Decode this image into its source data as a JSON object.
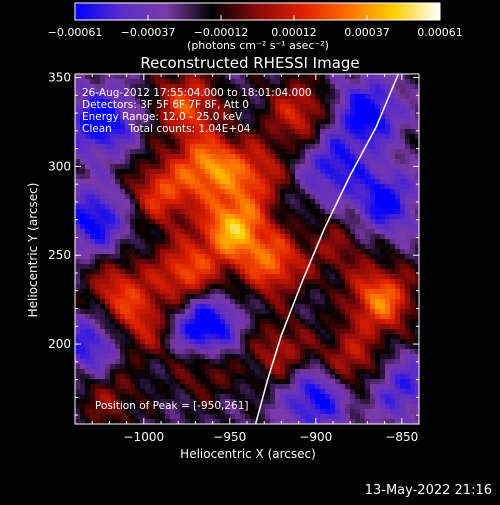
{
  "chart_data": {
    "type": "heatmap",
    "title": "Reconstructed RHESSI Image",
    "xlabel": "Heliocentric X (arcsec)",
    "ylabel": "Heliocentric Y (arcsec)",
    "xlim": [
      -1040,
      -840
    ],
    "ylim": [
      155,
      352
    ],
    "x_ticks": [
      -1000,
      -950,
      -900,
      -850
    ],
    "y_ticks": [
      200,
      250,
      300,
      350
    ],
    "x_tick_labels": [
      "−1000",
      "−950",
      "−900",
      "−850"
    ],
    "y_tick_labels": [
      "200",
      "250",
      "300",
      "350"
    ],
    "colorbar": {
      "range": [
        -0.00061,
        0.00061
      ],
      "tick_labels": [
        "−0.00061",
        "−0.00037",
        "−0.00012",
        "0.00012",
        "0.00037",
        "0.00061"
      ],
      "units_label": "(photons cm⁻² s⁻¹ asec⁻²)",
      "colors": [
        "#0000ff",
        "#5a2cc8",
        "#7a3aa8",
        "#000000",
        "#8a0a0a",
        "#e02000",
        "#ff7000",
        "#ffd000",
        "#ffffff"
      ]
    },
    "annotations": [
      "26-Aug-2012 17:55:04.000 to 18:01:04.000",
      "Detectors: 3F 5F 6F 7F 8F, Att 0",
      "Energy Range: 12.0 - 25.0 keV",
      "Clean     Total counts: 1.04E+04"
    ],
    "peak_label": "Position of Peak = [-950,261]",
    "peak": [
      -950,
      261
    ],
    "limb_curve": [
      [
        -935,
        155
      ],
      [
        -928,
        180
      ],
      [
        -920,
        205
      ],
      [
        -908,
        235
      ],
      [
        -895,
        265
      ],
      [
        -880,
        295
      ],
      [
        -865,
        322
      ],
      [
        -852,
        352
      ]
    ],
    "hot_spots": [
      {
        "x": -948,
        "y": 265,
        "value": 0.00061
      },
      {
        "x": -962,
        "y": 300,
        "value": 0.00052
      },
      {
        "x": -975,
        "y": 335,
        "value": 0.00042
      },
      {
        "x": -990,
        "y": 285,
        "value": 0.0004
      },
      {
        "x": -975,
        "y": 240,
        "value": 0.00045
      },
      {
        "x": -925,
        "y": 245,
        "value": 0.00045
      },
      {
        "x": -935,
        "y": 295,
        "value": 0.00035
      },
      {
        "x": -1015,
        "y": 230,
        "value": 0.00035
      },
      {
        "x": -1000,
        "y": 210,
        "value": 0.0003
      },
      {
        "x": -965,
        "y": 190,
        "value": 0.0003
      },
      {
        "x": -920,
        "y": 195,
        "value": 0.00028
      },
      {
        "x": -910,
        "y": 330,
        "value": 0.00035
      },
      {
        "x": -862,
        "y": 225,
        "value": 0.00052
      },
      {
        "x": -880,
        "y": 190,
        "value": 0.00032
      },
      {
        "x": -888,
        "y": 255,
        "value": 0.0002
      },
      {
        "x": -1020,
        "y": 170,
        "value": 0.00022
      }
    ],
    "cold_spots": [
      {
        "x": -965,
        "y": 208,
        "value": -0.00061
      },
      {
        "x": -1025,
        "y": 325,
        "value": -0.00045
      },
      {
        "x": -1028,
        "y": 270,
        "value": -0.0004
      },
      {
        "x": -870,
        "y": 330,
        "value": -0.00045
      },
      {
        "x": -860,
        "y": 280,
        "value": -0.0004
      },
      {
        "x": -900,
        "y": 170,
        "value": -0.00042
      },
      {
        "x": -890,
        "y": 300,
        "value": -0.00035
      },
      {
        "x": -1030,
        "y": 200,
        "value": -0.00035
      },
      {
        "x": -850,
        "y": 175,
        "value": -0.0003
      }
    ]
  },
  "footer": {
    "timestamp": "13-May-2022 21:16"
  }
}
